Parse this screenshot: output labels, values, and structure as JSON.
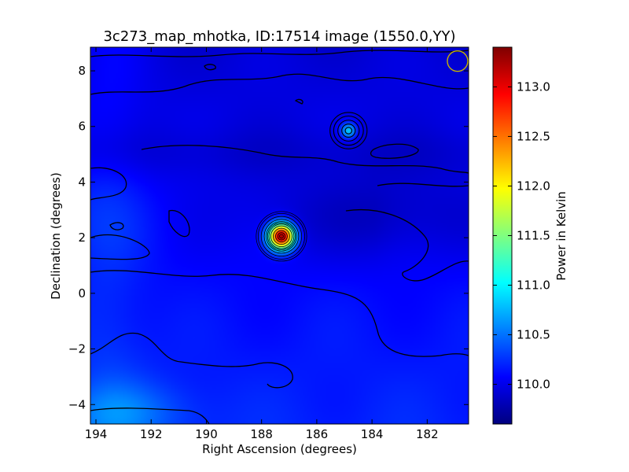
{
  "chart_data": {
    "type": "heatmap",
    "title": "3c273_map_mhotka, ID:17514 image (1550.0,YY)",
    "xlabel": "Right Ascension (degrees)",
    "ylabel": "Declination (degrees)",
    "xlim": [
      194.2,
      180.5
    ],
    "ylim": [
      -4.7,
      8.85
    ],
    "x_ticks": [
      194,
      192,
      190,
      188,
      186,
      184,
      182
    ],
    "x_tick_labels": [
      "194",
      "192",
      "190",
      "188",
      "186",
      "184",
      "182"
    ],
    "y_ticks": [
      -4,
      -2,
      0,
      2,
      4,
      6,
      8
    ],
    "y_tick_labels": [
      "−4",
      "−2",
      "0",
      "2",
      "4",
      "6",
      "8"
    ],
    "colorbar": {
      "label": "Power in Kelvin",
      "range": [
        109.6,
        113.4
      ],
      "ticks": [
        110.0,
        110.5,
        111.0,
        111.5,
        112.0,
        112.5,
        113.0
      ],
      "tick_labels": [
        "110.0",
        "110.5",
        "111.0",
        "111.5",
        "112.0",
        "112.5",
        "113.0"
      ],
      "colormap": "jet"
    },
    "sources": [
      {
        "ra": 187.28,
        "dec": 2.05,
        "peak": 113.3
      },
      {
        "ra": 184.85,
        "dec": 5.85,
        "peak": 110.9
      }
    ],
    "beam_marker": {
      "ra": 180.9,
      "dec": 8.35,
      "color": "#c8b400"
    }
  }
}
